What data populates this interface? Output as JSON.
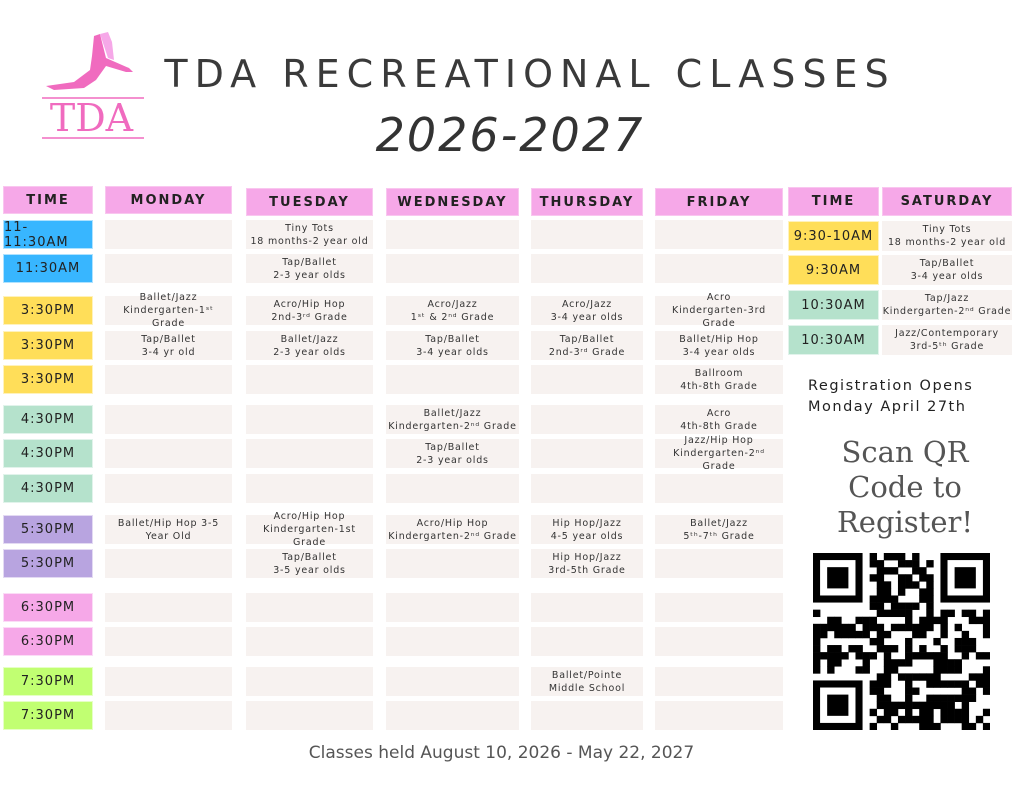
{
  "logo": {
    "text": "TDA",
    "color": "#f06bbf"
  },
  "header": {
    "title": "TDA RECREATIONAL CLASSES",
    "years": "2026-2027"
  },
  "weekday": {
    "time_header": "TIME",
    "times": [
      "11-11:30AM",
      "11:30AM",
      "3:30PM",
      "3:30PM",
      "3:30PM",
      "4:30PM",
      "4:30PM",
      "4:30PM",
      "5:30PM",
      "5:30PM",
      "6:30PM",
      "6:30PM",
      "7:30PM",
      "7:30PM"
    ],
    "time_colors": [
      "#38b6ff",
      "#38b6ff",
      "#ffde59",
      "#ffde59",
      "#ffde59",
      "#b5e2cc",
      "#b5e2cc",
      "#b5e2cc",
      "#b8a4e0",
      "#b8a4e0",
      "#f6a8e8",
      "#f6a8e8",
      "#c1ff72",
      "#c1ff72"
    ],
    "days": [
      {
        "name": "MONDAY",
        "cells": [
          "",
          "",
          "Ballet/Jazz\nKindergarten-1ˢᵗ Grade",
          "Tap/Ballet\n3-4 yr old",
          "",
          "",
          "",
          "",
          "Ballet/Hip Hop 3-5\nYear Old",
          "",
          "",
          "",
          "",
          ""
        ]
      },
      {
        "name": "TUESDAY",
        "cells": [
          "Tiny Tots\n18 months-2 year old",
          "Tap/Ballet\n2-3 year olds",
          "Acro/Hip Hop\n2nd-3ʳᵈ Grade",
          "Ballet/Jazz\n2-3 year olds",
          "",
          "",
          "",
          "",
          "Acro/Hip Hop\nKindergarten-1st Grade",
          "Tap/Ballet\n3-5 year olds",
          "",
          "",
          "",
          ""
        ]
      },
      {
        "name": "WEDNESDAY",
        "cells": [
          "",
          "",
          "Acro/Jazz\n1ˢᵗ & 2ⁿᵈ Grade",
          "Tap/Ballet\n3-4 year olds",
          "",
          "Ballet/Jazz\nKindergarten-2ⁿᵈ Grade",
          "Tap/Ballet\n2-3 year olds",
          "",
          "Acro/Hip Hop\nKindergarten-2ⁿᵈ Grade",
          "",
          "",
          "",
          "",
          ""
        ]
      },
      {
        "name": "THURSDAY",
        "cells": [
          "",
          "",
          "Acro/Jazz\n3-4 year olds",
          "Tap/Ballet\n2nd-3ʳᵈ Grade",
          "",
          "",
          "",
          "",
          "Hip Hop/Jazz\n4-5 year olds",
          "Hip Hop/Jazz\n3rd-5th Grade",
          "",
          "",
          "Ballet/Pointe\nMiddle School",
          ""
        ]
      },
      {
        "name": "FRIDAY",
        "cells": [
          "",
          "",
          "Acro\nKindergarten-3rd Grade",
          "Ballet/Hip Hop\n3-4 year olds",
          "Ballroom\n4th-8th Grade",
          "Acro\n4th-8th Grade",
          "Jazz/Hip Hop\nKindergarten-2ⁿᵈ Grade",
          "",
          "Ballet/Jazz\n5ᵗʰ-7ᵗʰ Grade",
          "",
          "",
          "",
          "",
          ""
        ]
      }
    ]
  },
  "saturday": {
    "time_header": "TIME",
    "name": "SATURDAY",
    "times": [
      "9:30-10AM",
      "9:30AM",
      "10:30AM",
      "10:30AM"
    ],
    "time_colors": [
      "#ffde59",
      "#ffde59",
      "#b5e2cc",
      "#b5e2cc"
    ],
    "cells": [
      "Tiny Tots\n18 months-2 year old",
      "Tap/Ballet\n3-4 year olds",
      "Tap/Jazz\nKindergarten-2ⁿᵈ Grade",
      "Jazz/Contemporary\n3rd-5ᵗʰ Grade"
    ]
  },
  "registration": {
    "line1": "Registration Opens",
    "line2": "Monday April 27th"
  },
  "scan": {
    "text": "Scan QR Code to Register!",
    "icon": "qr-code-icon"
  },
  "footer": {
    "text": "Classes held August 10, 2026 - May 22, 2027"
  }
}
